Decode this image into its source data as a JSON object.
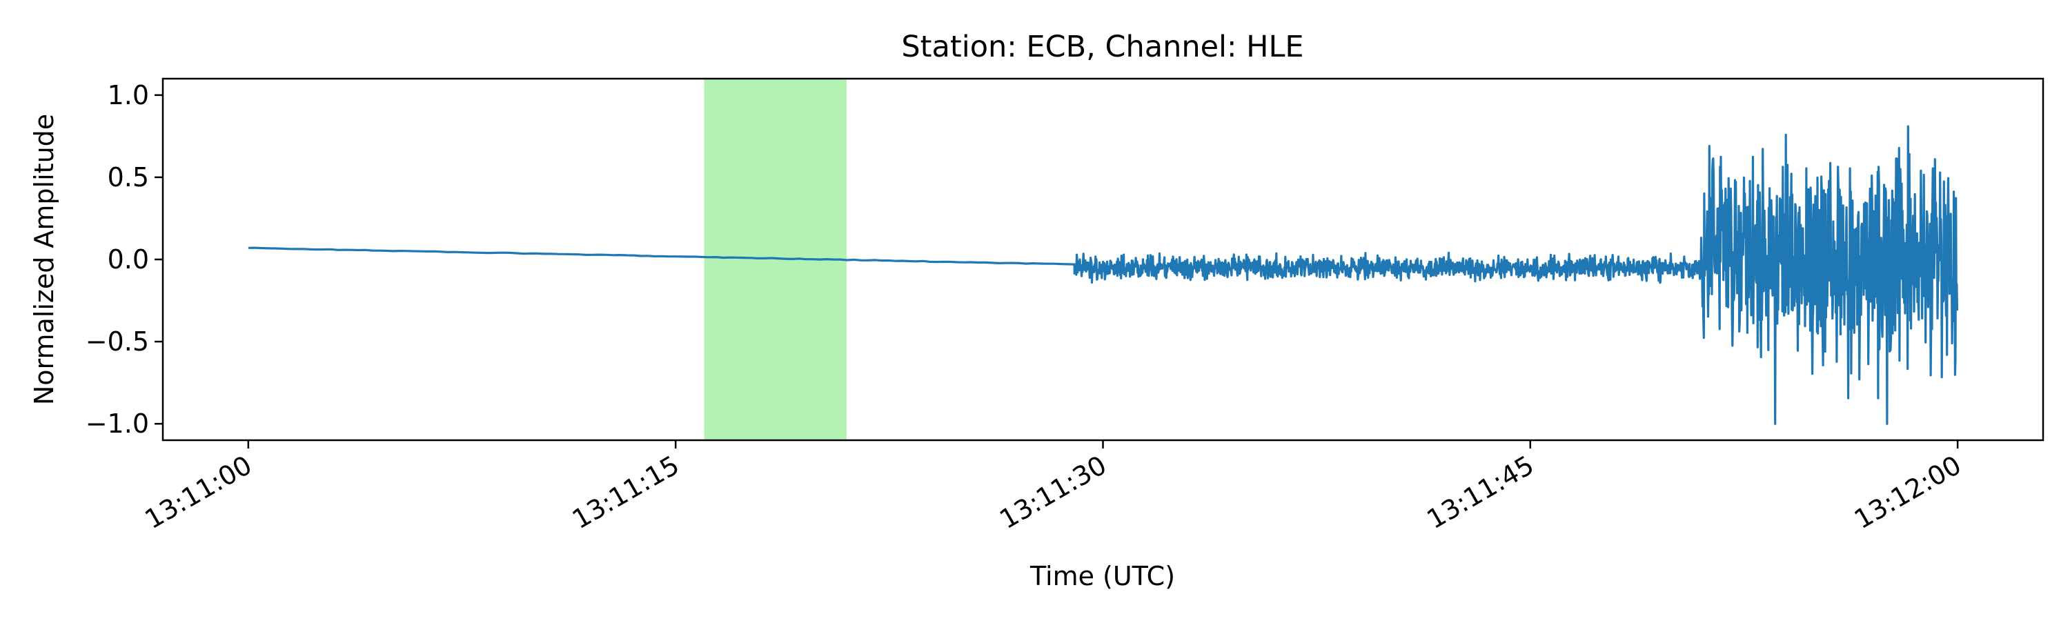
{
  "chart_data": {
    "type": "line",
    "title": "Station: ECB, Channel: HLE",
    "xlabel": "Time (UTC)",
    "ylabel": "Normalized Amplitude",
    "x_start": "13:11:00",
    "x_end": "13:12:00",
    "xlim": [
      "13:10:57",
      "13:12:03"
    ],
    "ylim": [
      -1.1,
      1.1
    ],
    "x_ticks": [
      "13:11:00",
      "13:11:15",
      "13:11:30",
      "13:11:45",
      "13:12:00"
    ],
    "y_ticks": [
      "1.0",
      "0.5",
      "0.0",
      "−0.5",
      "−1.0"
    ],
    "y_tick_values": [
      1.0,
      0.5,
      0.0,
      -0.5,
      -1.0
    ],
    "highlight_window": {
      "start": "13:11:16",
      "end": "13:11:21",
      "color": "#b3f2b3"
    },
    "series": [
      {
        "color": "#1f77b4",
        "segments": [
          {
            "start": "13:11:00",
            "end": "13:11:29",
            "type": "trend",
            "from": 0.07,
            "to": -0.03
          },
          {
            "start": "13:11:29",
            "end": "13:11:51",
            "type": "noise",
            "center": -0.05,
            "amplitude": 0.1
          },
          {
            "start": "13:11:51",
            "end": "13:12:00",
            "type": "burst",
            "center": 0.0,
            "amplitude": 1.0
          }
        ]
      }
    ],
    "grid": false
  }
}
